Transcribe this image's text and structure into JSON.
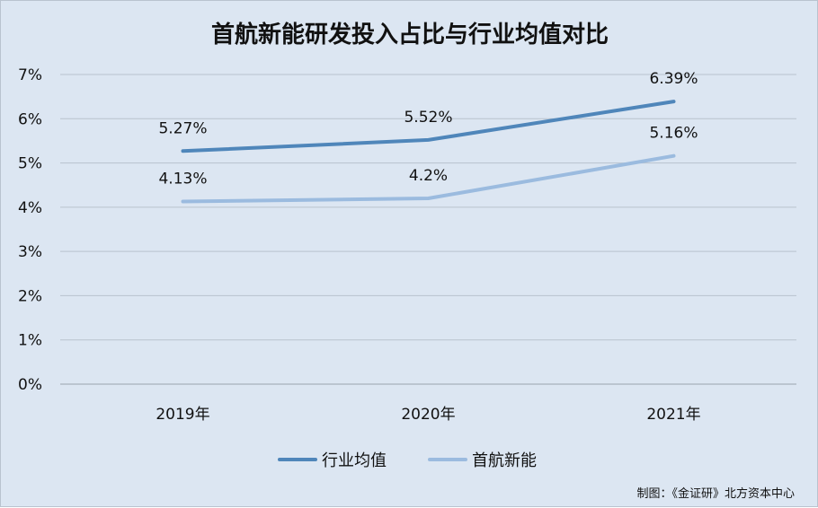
{
  "chart_data": {
    "type": "line",
    "title": "首航新能研发投入占比与行业均值对比",
    "categories": [
      "2019年",
      "2020年",
      "2021年"
    ],
    "ylim": [
      0,
      7
    ],
    "yticks": [
      "0%",
      "1%",
      "2%",
      "3%",
      "4%",
      "5%",
      "6%",
      "7%"
    ],
    "grid": true,
    "legend_position": "bottom",
    "series": [
      {
        "name": "行业均值",
        "values": [
          5.27,
          5.52,
          6.39
        ],
        "labels": [
          "5.27%",
          "5.52%",
          "6.39%"
        ],
        "color": "#4f86ba"
      },
      {
        "name": "首航新能",
        "values": [
          4.13,
          4.2,
          5.16
        ],
        "labels": [
          "4.13%",
          "4.2%",
          "5.16%"
        ],
        "color": "#9bbbdf"
      }
    ],
    "source": "制图：《金证研》北方资本中心"
  }
}
